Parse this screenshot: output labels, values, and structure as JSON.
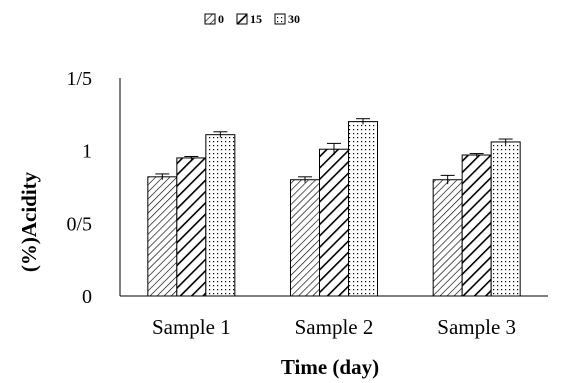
{
  "chart_data": {
    "type": "bar",
    "categories": [
      "Sample 1",
      "Sample 2",
      "Sample 3"
    ],
    "series": [
      {
        "name": "0",
        "values": [
          0.82,
          0.8,
          0.8
        ],
        "errors": [
          0.02,
          0.02,
          0.03
        ],
        "pattern": "diag-fine"
      },
      {
        "name": "15",
        "values": [
          0.95,
          1.01,
          0.97
        ],
        "errors": [
          0.01,
          0.04,
          0.01
        ],
        "pattern": "diag-bold"
      },
      {
        "name": "30",
        "values": [
          1.11,
          1.2,
          1.06
        ],
        "errors": [
          0.02,
          0.02,
          0.02
        ],
        "pattern": "dots"
      }
    ],
    "title": "",
    "xlabel": "Time (day)",
    "ylabel": "(%)Acidity",
    "ylim": [
      0,
      1.5
    ],
    "yticks": [
      {
        "value": 0,
        "label": "0"
      },
      {
        "value": 0.5,
        "label": "0/5"
      },
      {
        "value": 1,
        "label": "1"
      },
      {
        "value": 1.5,
        "label": "1/5"
      }
    ],
    "grid": false,
    "legend_position": "top-center"
  }
}
